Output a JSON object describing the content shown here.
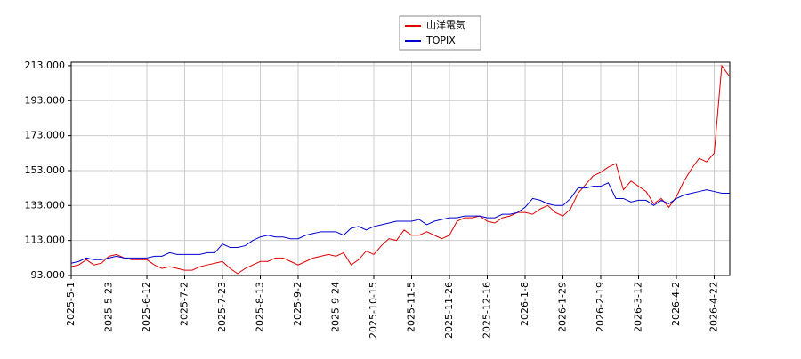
{
  "chart_data": {
    "type": "line",
    "categories": [
      "2025-5-1",
      null,
      null,
      null,
      null,
      "2025-5-23",
      null,
      null,
      null,
      null,
      "2025-6-12",
      null,
      null,
      null,
      null,
      "2025-7-2",
      null,
      null,
      null,
      null,
      "2025-7-23",
      null,
      null,
      null,
      null,
      "2025-8-13",
      null,
      null,
      null,
      null,
      "2025-9-2",
      null,
      null,
      null,
      null,
      "2025-9-24",
      null,
      null,
      null,
      null,
      "2025-10-15",
      null,
      null,
      null,
      null,
      "2025-11-5",
      null,
      null,
      null,
      null,
      "2025-11-26",
      null,
      null,
      null,
      null,
      "2025-12-16",
      null,
      null,
      null,
      null,
      "2026-1-8",
      null,
      null,
      null,
      null,
      "2026-1-29",
      null,
      null,
      null,
      null,
      "2026-2-19",
      null,
      null,
      null,
      null,
      "2026-3-12",
      null,
      null,
      null,
      null,
      "2026-4-2",
      null,
      null,
      null,
      null,
      "2026-4-22",
      null,
      null
    ],
    "series": [
      {
        "name": "山洋電気",
        "color": "#dd0000",
        "values": [
          98,
          99,
          102,
          99,
          100,
          104,
          105,
          103,
          102,
          102,
          102,
          99,
          97,
          98,
          97,
          96,
          96,
          98,
          99,
          100,
          101,
          97,
          94,
          97,
          99,
          101,
          101,
          103,
          103,
          101,
          99,
          101,
          103,
          104,
          105,
          104,
          106,
          99,
          102,
          107,
          105,
          110,
          114,
          113,
          119,
          116,
          116,
          118,
          116,
          114,
          116,
          124,
          126,
          126,
          127,
          124,
          123,
          126,
          127,
          129,
          129,
          128,
          131,
          133,
          129,
          127,
          131,
          140,
          145,
          150,
          152,
          155,
          157,
          142,
          147,
          144,
          141,
          134,
          137,
          132,
          138,
          147,
          154,
          160,
          158,
          163,
          213,
          207
        ]
      },
      {
        "name": "TOPIX",
        "color": "#0000cc",
        "values": [
          100,
          101,
          103,
          102,
          102,
          103,
          104,
          103,
          103,
          103,
          103,
          104,
          104,
          106,
          105,
          105,
          105,
          105,
          106,
          106,
          111,
          109,
          109,
          110,
          113,
          115,
          116,
          115,
          115,
          114,
          114,
          116,
          117,
          118,
          118,
          118,
          116,
          120,
          121,
          119,
          121,
          122,
          123,
          124,
          124,
          124,
          125,
          122,
          124,
          125,
          126,
          126,
          127,
          127,
          127,
          126,
          126,
          128,
          128,
          129,
          132,
          137,
          136,
          134,
          133,
          133,
          137,
          143,
          143,
          144,
          144,
          146,
          137,
          137,
          135,
          136,
          136,
          133,
          136,
          134,
          137,
          139,
          140,
          141,
          142,
          141,
          140,
          140
        ]
      }
    ],
    "ylim": [
      93,
      215
    ],
    "yticks": [
      {
        "value": 93,
        "label": "93.000"
      },
      {
        "value": 113,
        "label": "113.000"
      },
      {
        "value": 133,
        "label": "133.000"
      },
      {
        "value": 153,
        "label": "153.000"
      },
      {
        "value": 173,
        "label": "173.000"
      },
      {
        "value": 193,
        "label": "193.000"
      },
      {
        "value": 213,
        "label": "213.000"
      }
    ],
    "grid": true,
    "legend": "top"
  }
}
